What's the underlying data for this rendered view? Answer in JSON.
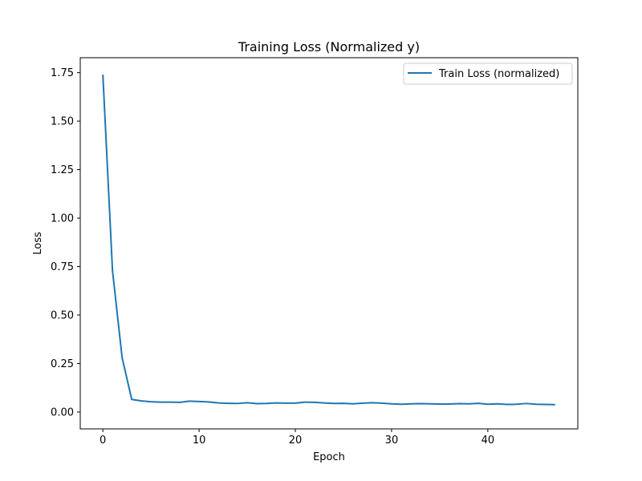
{
  "chart_data": {
    "type": "line",
    "title": "Training Loss (Normalized y)",
    "xlabel": "Epoch",
    "ylabel": "Loss",
    "xlim": [
      -2.35,
      49.35
    ],
    "ylim": [
      -0.087,
      1.827
    ],
    "xticks": [
      0,
      10,
      20,
      30,
      40
    ],
    "xtick_labels": [
      "0",
      "10",
      "20",
      "30",
      "40"
    ],
    "yticks": [
      0.0,
      0.25,
      0.5,
      0.75,
      1.0,
      1.25,
      1.5,
      1.75
    ],
    "ytick_labels": [
      "0.00",
      "0.25",
      "0.50",
      "0.75",
      "1.00",
      "1.25",
      "1.50",
      "1.75"
    ],
    "grid": false,
    "legend_position": "top-right",
    "series": [
      {
        "name": "Train Loss (normalized)",
        "color": "#1f77b4",
        "x": [
          0,
          1,
          2,
          3,
          4,
          5,
          6,
          7,
          8,
          9,
          10,
          11,
          12,
          13,
          14,
          15,
          16,
          17,
          18,
          19,
          20,
          21,
          22,
          23,
          24,
          25,
          26,
          27,
          28,
          29,
          30,
          31,
          32,
          33,
          34,
          35,
          36,
          37,
          38,
          39,
          40,
          41,
          42,
          43,
          44,
          45,
          46,
          47
        ],
        "y": [
          1.74,
          0.73,
          0.28,
          0.065,
          0.057,
          0.053,
          0.051,
          0.051,
          0.05,
          0.056,
          0.054,
          0.052,
          0.047,
          0.045,
          0.044,
          0.048,
          0.043,
          0.044,
          0.047,
          0.046,
          0.046,
          0.051,
          0.05,
          0.047,
          0.044,
          0.045,
          0.042,
          0.046,
          0.048,
          0.046,
          0.042,
          0.04,
          0.042,
          0.043,
          0.042,
          0.041,
          0.041,
          0.043,
          0.042,
          0.045,
          0.04,
          0.042,
          0.039,
          0.04,
          0.044,
          0.04,
          0.039,
          0.038
        ]
      }
    ]
  }
}
